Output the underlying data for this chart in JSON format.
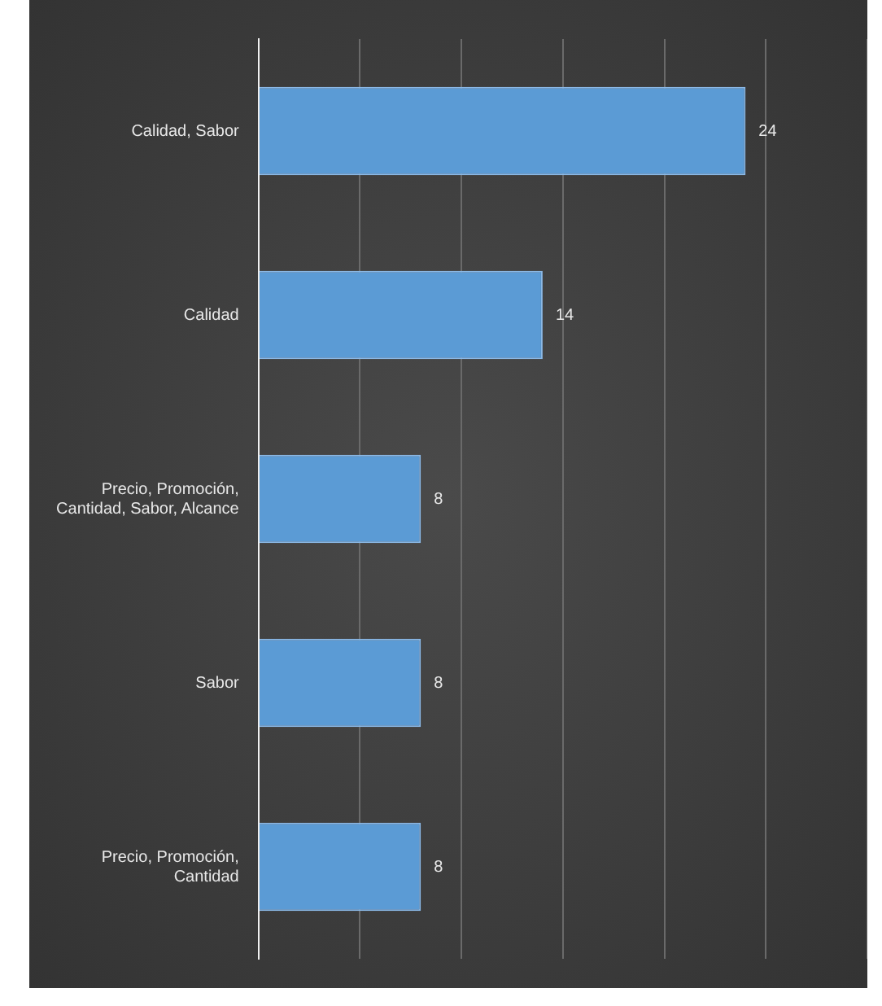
{
  "chart_data": {
    "type": "bar",
    "orientation": "horizontal",
    "categories": [
      "Calidad, Sabor",
      "Calidad",
      "Precio, Promoción, Cantidad, Sabor, Alcance",
      "Sabor",
      "Precio, Promoción, Cantidad"
    ],
    "values": [
      24,
      14,
      8,
      8,
      8
    ],
    "color": "#5b9bd5",
    "xlim": [
      0,
      30
    ],
    "xticks": [
      {
        "value": 0,
        "label": null
      },
      {
        "value": 5,
        "label": null
      },
      {
        "value": 10,
        "label": null
      },
      {
        "value": 15,
        "label": null
      },
      {
        "value": 20,
        "label": null
      },
      {
        "value": 25,
        "label": null
      },
      {
        "value": 30,
        "label": null
      }
    ],
    "grid": "x",
    "tick_labels": "y",
    "data_labels": true
  }
}
